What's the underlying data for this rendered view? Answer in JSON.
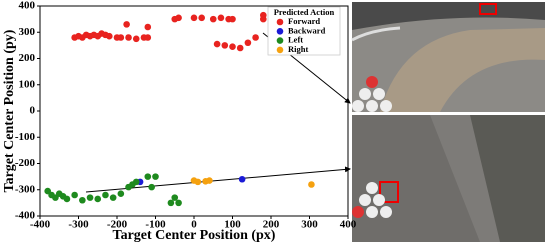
{
  "chart_data": {
    "type": "scatter",
    "x_label": "Target Center Position (px)",
    "y_label": "Target Center Position (py)",
    "xlim": [
      -400,
      400
    ],
    "ylim": [
      -400,
      400
    ],
    "xticks": [
      -400,
      -300,
      -200,
      -100,
      0,
      100,
      200,
      300,
      400
    ],
    "yticks": [
      -400,
      -300,
      -200,
      -100,
      0,
      100,
      200,
      300,
      400
    ],
    "grid": false,
    "legend_title": "Predicted Action",
    "legend_position": "upper right",
    "series": [
      {
        "name": "Forward",
        "color": "#e8231f",
        "x": [
          -310,
          -300,
          -290,
          -280,
          -270,
          -260,
          -250,
          -240,
          -230,
          -220,
          -200,
          -190,
          -170,
          -150,
          -130,
          -120,
          -175,
          -120,
          -50,
          -40,
          0,
          20,
          50,
          70,
          90,
          100,
          60,
          80,
          100,
          120,
          140,
          160,
          180,
          180
        ],
        "y": [
          280,
          285,
          280,
          290,
          285,
          290,
          285,
          295,
          290,
          285,
          280,
          280,
          280,
          275,
          280,
          280,
          330,
          320,
          350,
          355,
          355,
          355,
          350,
          355,
          350,
          350,
          255,
          250,
          245,
          240,
          260,
          280,
          350,
          365
        ]
      },
      {
        "name": "Backward",
        "color": "#1a1ad6",
        "x": [
          -140,
          125
        ],
        "y": [
          -270,
          -260
        ]
      },
      {
        "name": "Left",
        "color": "#1e8a1e",
        "x": [
          -380,
          -370,
          -360,
          -350,
          -340,
          -330,
          -310,
          -290,
          -270,
          -250,
          -230,
          -210,
          -190,
          -170,
          -160,
          -150,
          -120,
          -110,
          -100,
          -60,
          -50,
          -40
        ],
        "y": [
          -305,
          -320,
          -330,
          -315,
          -325,
          -335,
          -320,
          -340,
          -330,
          -335,
          -320,
          -330,
          -315,
          -290,
          -280,
          -270,
          -250,
          -290,
          -250,
          -350,
          -330,
          -350
        ]
      },
      {
        "name": "Right",
        "color": "#f5a10f",
        "x": [
          0,
          10,
          30,
          40,
          305
        ],
        "y": [
          -265,
          -270,
          -268,
          -265,
          -280
        ]
      }
    ]
  }
}
